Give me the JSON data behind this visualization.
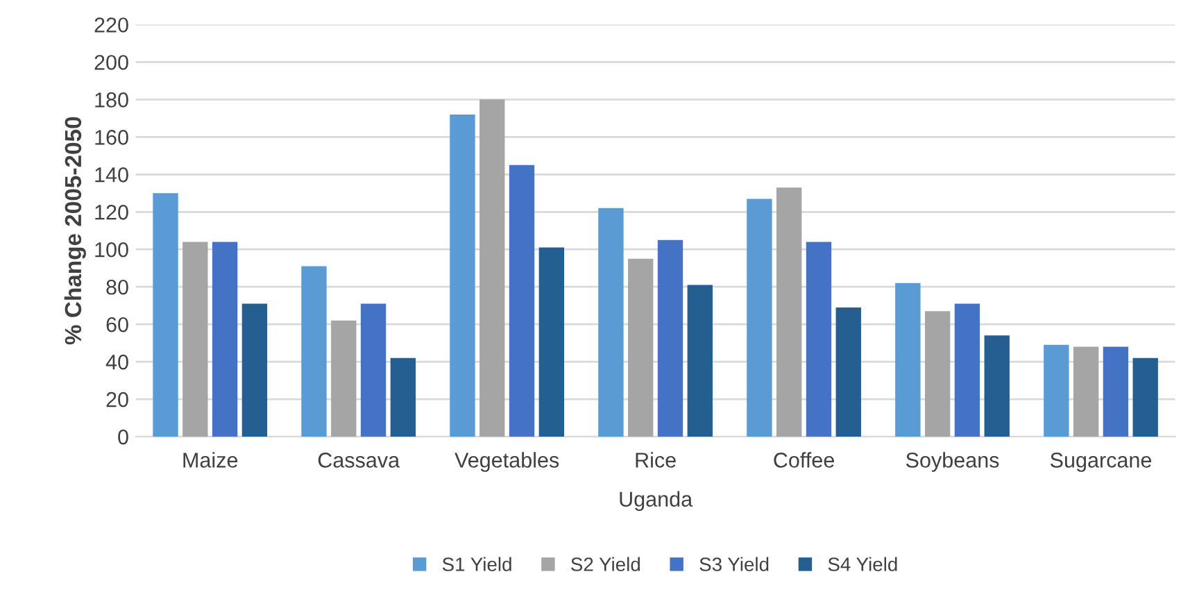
{
  "chart_data": {
    "type": "bar",
    "xlabel": "Uganda",
    "ylabel": "% Change 2005-2050",
    "categories": [
      "Maize",
      "Cassava",
      "Vegetables",
      "Rice",
      "Coffee",
      "Soybeans",
      "Sugarcane"
    ],
    "series": [
      {
        "name": "S1 Yield",
        "color": "#5b9bd5",
        "values": [
          130,
          91,
          172,
          122,
          127,
          82,
          49
        ]
      },
      {
        "name": "S2 Yield",
        "color": "#a5a5a5",
        "values": [
          104,
          62,
          180,
          95,
          133,
          67,
          48
        ]
      },
      {
        "name": "S3 Yield",
        "color": "#4472c4",
        "values": [
          104,
          71,
          145,
          105,
          104,
          71,
          48
        ]
      },
      {
        "name": "S4 Yield",
        "color": "#255e91",
        "values": [
          71,
          42,
          101,
          81,
          69,
          54,
          42
        ]
      }
    ],
    "ylim": [
      0,
      220
    ],
    "yticks": [
      0,
      20,
      40,
      60,
      80,
      100,
      120,
      140,
      160,
      180,
      200,
      220
    ],
    "grid": "y",
    "legend": "bottom"
  }
}
